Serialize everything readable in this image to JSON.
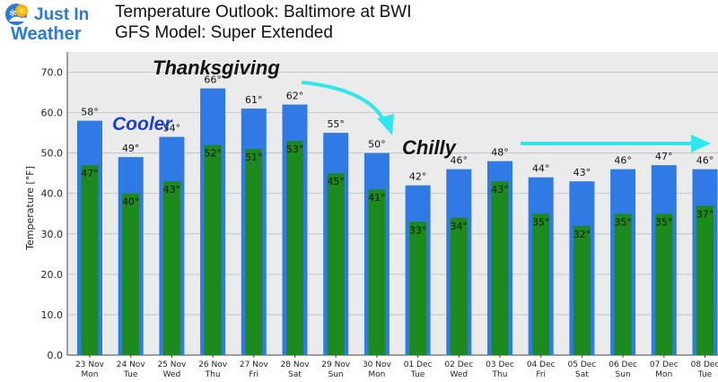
{
  "brand": {
    "logo_line1": "Just In",
    "logo_line2": "Weather"
  },
  "header": {
    "title_line1": "Temperature Outlook: Baltimore at BWI",
    "title_line2": "GFS Model: Super Extended"
  },
  "annotations": {
    "thanksgiving": "Thanksgiving",
    "cooler": "Cooler",
    "chilly": "Chilly"
  },
  "colors": {
    "high_bar": "#2f7ae5",
    "low_bar": "#1d8a1d",
    "annotation_arrow": "#2fe6ec",
    "cooler_text": "#1c3fd1",
    "plot_bg": "#ebebeb"
  },
  "chart_data": {
    "type": "bar",
    "title": "Temperature Outlook: Baltimore at BWI",
    "subtitle": "GFS Model: Super Extended",
    "ylabel": "Temperature [°F]",
    "xlabel": "",
    "ylim": [
      0,
      75
    ],
    "yticks": [
      "0.0",
      "10.0",
      "20.0",
      "30.0",
      "40.0",
      "50.0",
      "60.0",
      "70.0"
    ],
    "grid": true,
    "categories": [
      {
        "date": "23 Nov",
        "day": "Mon"
      },
      {
        "date": "24 Nov",
        "day": "Tue"
      },
      {
        "date": "25 Nov",
        "day": "Wed"
      },
      {
        "date": "26 Nov",
        "day": "Thu"
      },
      {
        "date": "27 Nov",
        "day": "Fri"
      },
      {
        "date": "28 Nov",
        "day": "Sat"
      },
      {
        "date": "29 Nov",
        "day": "Sun"
      },
      {
        "date": "30 Nov",
        "day": "Mon"
      },
      {
        "date": "01 Dec",
        "day": "Tue"
      },
      {
        "date": "02 Dec",
        "day": "Wed"
      },
      {
        "date": "03 Dec",
        "day": "Thu"
      },
      {
        "date": "04 Dec",
        "day": "Fri"
      },
      {
        "date": "05 Dec",
        "day": "Sat"
      },
      {
        "date": "06 Dec",
        "day": "Sun"
      },
      {
        "date": "07 Dec",
        "day": "Mon"
      },
      {
        "date": "08 Dec",
        "day": "Tue"
      }
    ],
    "series": [
      {
        "role": "high",
        "values": [
          58,
          49,
          54,
          66,
          61,
          62,
          55,
          50,
          42,
          46,
          48,
          44,
          43,
          46,
          47,
          46
        ]
      },
      {
        "role": "low",
        "values": [
          47,
          40,
          43,
          52,
          51,
          53,
          45,
          41,
          33,
          34,
          43,
          35,
          32,
          35,
          35,
          37
        ]
      }
    ]
  }
}
